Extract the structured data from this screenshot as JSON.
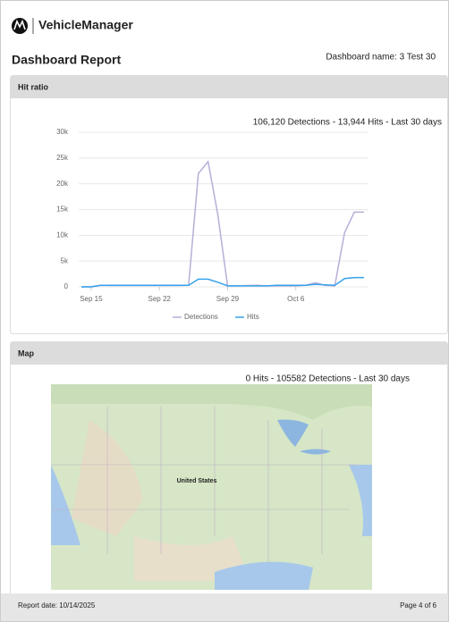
{
  "header": {
    "brand": "VehicleManager",
    "title": "Dashboard Report",
    "dashboard_name": "Dashboard name: 3 Test 30"
  },
  "sections": [
    {
      "title": "Hit ratio"
    },
    {
      "title": "Map",
      "subtitle": "0 Hits - 105582 Detections - Last 30 days",
      "map_label": "United States"
    }
  ],
  "chart_data": {
    "type": "line",
    "subtitle": "106,120 Detections - 13,944 Hits - Last 30 days",
    "categories": [
      null,
      "Sep 15",
      null,
      null,
      null,
      null,
      null,
      null,
      "Sep 22",
      null,
      null,
      null,
      null,
      null,
      null,
      "Sep 29",
      null,
      null,
      null,
      null,
      null,
      null,
      "Oct 6",
      null,
      null,
      null,
      null,
      null,
      null,
      null
    ],
    "series": [
      {
        "name": "Detections",
        "color": "#b7afd6",
        "values": [
          0,
          50,
          300,
          250,
          250,
          250,
          250,
          250,
          250,
          250,
          250,
          300,
          22000,
          24300,
          14000,
          200,
          200,
          250,
          300,
          200,
          200,
          200,
          200,
          300,
          800,
          300,
          200,
          10500,
          14500,
          14500
        ]
      },
      {
        "name": "Hits",
        "color": "#36a2eb",
        "values": [
          0,
          0,
          300,
          300,
          300,
          300,
          300,
          300,
          300,
          300,
          300,
          300,
          1500,
          1500,
          900,
          200,
          200,
          200,
          200,
          200,
          300,
          300,
          300,
          300,
          500,
          400,
          300,
          1600,
          1800,
          1800
        ]
      }
    ],
    "ylim": [
      0,
      30000
    ],
    "yticks": [
      0,
      {
        "value": 5000,
        "label": "5k"
      },
      {
        "value": 10000,
        "label": "10k"
      },
      {
        "value": 15000,
        "label": "15k"
      },
      {
        "value": 20000,
        "label": "20k"
      },
      {
        "value": 25000,
        "label": "25k"
      },
      {
        "value": 30000,
        "label": "30k"
      }
    ],
    "grid": true,
    "legend": "bottom"
  },
  "footer": {
    "report_date": "Report date: 10/14/2025",
    "page": "Page 4 of 6"
  }
}
